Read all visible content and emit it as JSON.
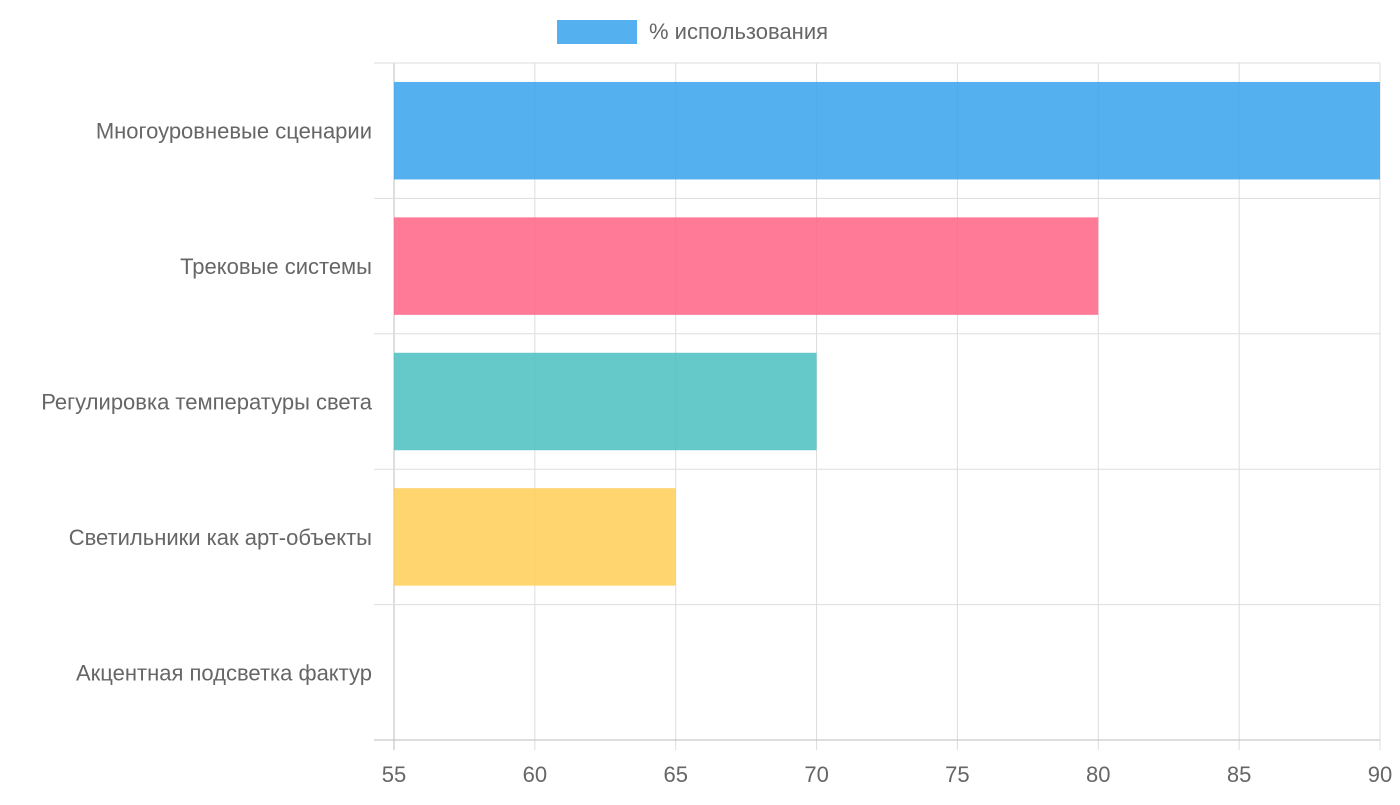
{
  "chart_data": {
    "type": "bar",
    "orientation": "horizontal",
    "categories": [
      "Многоуровневые сценарии",
      "Трековые системы",
      "Регулировка температуры света",
      "Светильники как арт-объекты",
      "Акцентная подсветка фактур"
    ],
    "series": [
      {
        "name": "% использования",
        "values": [
          90,
          80,
          70,
          65,
          55
        ]
      }
    ],
    "colors": [
      "#36A2EB",
      "#FF6384",
      "#4BC0C0",
      "#FFCE56",
      "#9966FF"
    ],
    "legend_color": "#36A2EB",
    "xlim": [
      55,
      90
    ],
    "x_ticks": [
      55,
      60,
      65,
      70,
      75,
      80,
      85,
      90
    ],
    "grid": true,
    "legend_position": "top"
  }
}
